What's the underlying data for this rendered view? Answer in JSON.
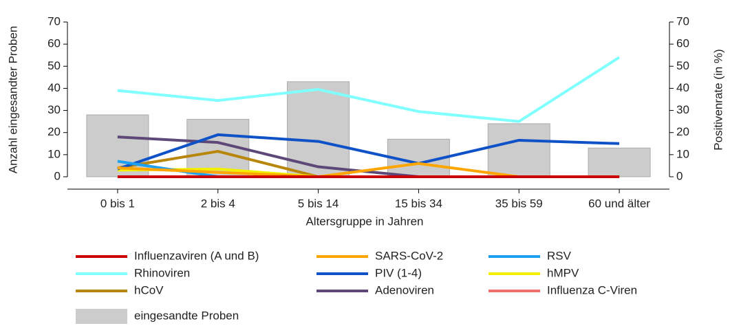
{
  "chart_data": {
    "type": "bar",
    "x_label": "Altersgruppe in Jahren",
    "y_label": "Anzahl eingesandter Proben",
    "y2_label": "Positivenrate (in %)",
    "categories": [
      "0 bis 1",
      "2 bis 4",
      "5 bis 14",
      "15 bis 34",
      "35 bis 59",
      "60 und älter"
    ],
    "ylim": [
      0,
      70
    ],
    "yticks": [
      0,
      10,
      20,
      30,
      40,
      50,
      60,
      70
    ],
    "y2lim": [
      0,
      70
    ],
    "y2ticks": [
      0,
      10,
      20,
      30,
      40,
      50,
      60,
      70
    ],
    "series": [
      {
        "name": "Influenzaviren (A und B)",
        "type": "line",
        "axis": "y2",
        "color": "#cc0000",
        "values": [
          0,
          0,
          0,
          0,
          0,
          0
        ]
      },
      {
        "name": "SARS-CoV-2",
        "type": "line",
        "axis": "y2",
        "color": "#ffa500",
        "values": [
          4,
          2,
          0,
          6,
          0,
          0
        ]
      },
      {
        "name": "RSV",
        "type": "line",
        "axis": "y2",
        "color": "#1ea0f0",
        "values": [
          7,
          0,
          0,
          0,
          0,
          0
        ]
      },
      {
        "name": "Rhinoviren",
        "type": "line",
        "axis": "y2",
        "color": "#80ffff",
        "values": [
          39,
          34.5,
          39.5,
          29.5,
          25,
          54
        ]
      },
      {
        "name": "PIV (1-4)",
        "type": "line",
        "axis": "y2",
        "color": "#0f52c8",
        "values": [
          3.5,
          19,
          16,
          6,
          16.5,
          15
        ]
      },
      {
        "name": "hMPV",
        "type": "line",
        "axis": "y2",
        "color": "#f0f000",
        "values": [
          3,
          3.5,
          0,
          0,
          0,
          0
        ]
      },
      {
        "name": "hCoV",
        "type": "line",
        "axis": "y2",
        "color": "#b8860b",
        "values": [
          4,
          11.5,
          0,
          0,
          0,
          0
        ]
      },
      {
        "name": "Adenoviren",
        "type": "line",
        "axis": "y2",
        "color": "#5e4878",
        "values": [
          18,
          15.5,
          4.5,
          0,
          0,
          0
        ]
      },
      {
        "name": "Influenza C-Viren",
        "type": "line",
        "axis": "y2",
        "color": "#f07070",
        "values": [
          0,
          0,
          0,
          0,
          0,
          0
        ]
      },
      {
        "name": "eingesandte Proben",
        "type": "bar",
        "axis": "y",
        "color": "#cccccc",
        "values": [
          28,
          26,
          43,
          17,
          24,
          13
        ]
      }
    ]
  }
}
